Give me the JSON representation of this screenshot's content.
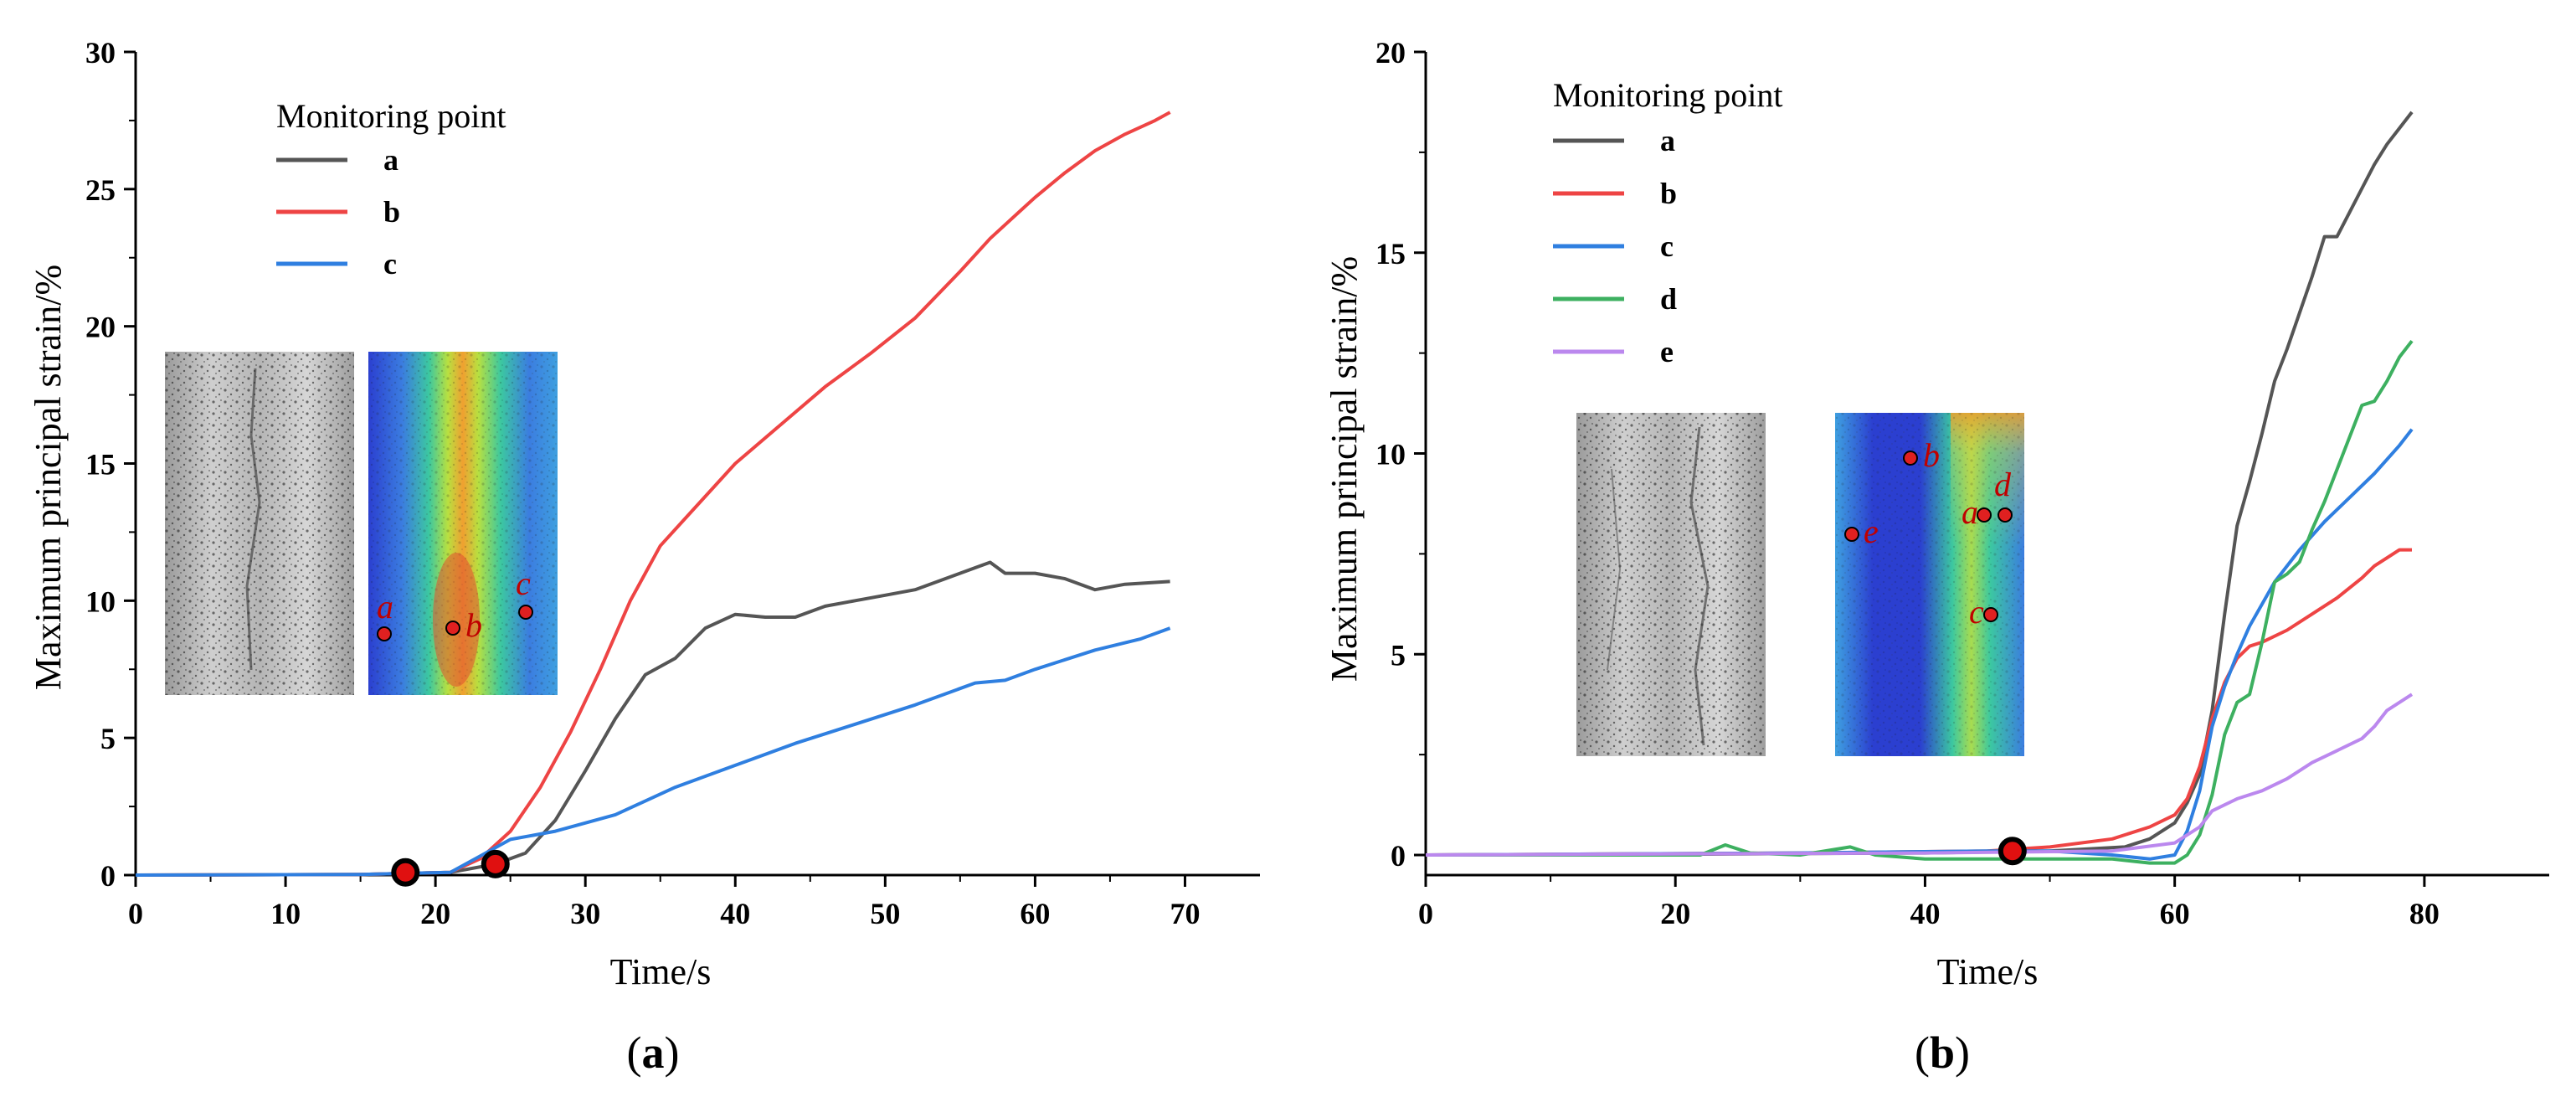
{
  "chart_data": [
    {
      "type": "line",
      "panel": "a",
      "caption_open": "(",
      "caption_letter": "a",
      "caption_close": ")",
      "xlabel": "Time/s",
      "ylabel": "Maximum principal strain/%",
      "xlim": [
        0,
        75
      ],
      "ylim": [
        0,
        30
      ],
      "xticks": [
        0,
        10,
        20,
        30,
        40,
        50,
        60,
        70
      ],
      "yticks": [
        0,
        5,
        10,
        15,
        20,
        25,
        30
      ],
      "legend_title": "Monitoring point",
      "legend_position": "top-left",
      "series": [
        {
          "name": "a",
          "color": "#555555",
          "points": [
            [
              0,
              0
            ],
            [
              15,
              0.02
            ],
            [
              21,
              0.1
            ],
            [
              24,
              0.4
            ],
            [
              26,
              0.8
            ],
            [
              28,
              2.0
            ],
            [
              30,
              3.8
            ],
            [
              32,
              5.7
            ],
            [
              34,
              7.3
            ],
            [
              36,
              7.9
            ],
            [
              38,
              9.0
            ],
            [
              40,
              9.5
            ],
            [
              42,
              9.4
            ],
            [
              44,
              9.4
            ],
            [
              46,
              9.8
            ],
            [
              48,
              10.0
            ],
            [
              50,
              10.2
            ],
            [
              52,
              10.4
            ],
            [
              54,
              10.8
            ],
            [
              56,
              11.2
            ],
            [
              57,
              11.4
            ],
            [
              58,
              11.0
            ],
            [
              60,
              11.0
            ],
            [
              62,
              10.8
            ],
            [
              64,
              10.4
            ],
            [
              66,
              10.6
            ],
            [
              69,
              10.7
            ]
          ]
        },
        {
          "name": "b",
          "color": "#ee4444",
          "points": [
            [
              0,
              0
            ],
            [
              15,
              0.02
            ],
            [
              21,
              0.1
            ],
            [
              23,
              0.6
            ],
            [
              25,
              1.6
            ],
            [
              27,
              3.2
            ],
            [
              29,
              5.2
            ],
            [
              31,
              7.5
            ],
            [
              33,
              10.0
            ],
            [
              35,
              12.0
            ],
            [
              37,
              13.2
            ],
            [
              40,
              15.0
            ],
            [
              43,
              16.4
            ],
            [
              46,
              17.8
            ],
            [
              49,
              19.0
            ],
            [
              52,
              20.3
            ],
            [
              55,
              22.0
            ],
            [
              57,
              23.2
            ],
            [
              59,
              24.2
            ],
            [
              60,
              24.7
            ],
            [
              62,
              25.6
            ],
            [
              64,
              26.4
            ],
            [
              66,
              27.0
            ],
            [
              68,
              27.5
            ],
            [
              69,
              27.8
            ]
          ]
        },
        {
          "name": "c",
          "color": "#2f7fe0",
          "points": [
            [
              0,
              0
            ],
            [
              15,
              0.02
            ],
            [
              21,
              0.1
            ],
            [
              23,
              0.7
            ],
            [
              25,
              1.3
            ],
            [
              28,
              1.6
            ],
            [
              32,
              2.2
            ],
            [
              36,
              3.2
            ],
            [
              40,
              4.0
            ],
            [
              44,
              4.8
            ],
            [
              48,
              5.5
            ],
            [
              52,
              6.2
            ],
            [
              56,
              7.0
            ],
            [
              58,
              7.1
            ],
            [
              60,
              7.5
            ],
            [
              64,
              8.2
            ],
            [
              67,
              8.6
            ],
            [
              69,
              9.0
            ]
          ]
        }
      ],
      "markers": [
        [
          18,
          0.1
        ],
        [
          24,
          0.4
        ]
      ],
      "inset_point_labels": [
        "a",
        "b",
        "c"
      ]
    },
    {
      "type": "line",
      "panel": "b",
      "caption_open": "(",
      "caption_letter": "b",
      "caption_close": ")",
      "xlabel": "Time/s",
      "ylabel": "Maximum principal strain/%",
      "xlim": [
        0,
        90
      ],
      "ylim": [
        -0.5,
        20
      ],
      "xticks": [
        0,
        20,
        40,
        60,
        80
      ],
      "yticks": [
        0,
        5,
        10,
        15,
        20
      ],
      "legend_title": "Monitoring point",
      "legend_position": "top-left",
      "series": [
        {
          "name": "a",
          "color": "#555555",
          "points": [
            [
              0,
              0
            ],
            [
              20,
              0.02
            ],
            [
              40,
              0.05
            ],
            [
              50,
              0.1
            ],
            [
              56,
              0.2
            ],
            [
              58,
              0.4
            ],
            [
              60,
              0.8
            ],
            [
              61,
              1.3
            ],
            [
              62,
              2.0
            ],
            [
              63,
              3.6
            ],
            [
              64,
              6.0
            ],
            [
              65,
              8.2
            ],
            [
              66,
              9.3
            ],
            [
              67,
              10.5
            ],
            [
              68,
              11.8
            ],
            [
              69,
              12.6
            ],
            [
              70,
              13.5
            ],
            [
              71,
              14.4
            ],
            [
              72,
              15.4
            ],
            [
              73,
              15.4
            ],
            [
              74,
              16.0
            ],
            [
              75,
              16.6
            ],
            [
              76,
              17.2
            ],
            [
              77,
              17.7
            ],
            [
              78,
              18.1
            ],
            [
              79,
              18.5
            ]
          ]
        },
        {
          "name": "b",
          "color": "#ee4444",
          "points": [
            [
              0,
              0
            ],
            [
              30,
              0.05
            ],
            [
              45,
              0.1
            ],
            [
              50,
              0.2
            ],
            [
              55,
              0.4
            ],
            [
              58,
              0.7
            ],
            [
              60,
              1.0
            ],
            [
              61,
              1.4
            ],
            [
              62,
              2.2
            ],
            [
              63,
              3.4
            ],
            [
              64,
              4.3
            ],
            [
              65,
              4.9
            ],
            [
              66,
              5.2
            ],
            [
              67,
              5.3
            ],
            [
              69,
              5.6
            ],
            [
              71,
              6.0
            ],
            [
              73,
              6.4
            ],
            [
              75,
              6.9
            ],
            [
              76,
              7.2
            ],
            [
              77,
              7.4
            ],
            [
              78,
              7.6
            ],
            [
              79,
              7.6
            ]
          ]
        },
        {
          "name": "c",
          "color": "#2f7fe0",
          "points": [
            [
              0,
              0
            ],
            [
              30,
              0.05
            ],
            [
              45,
              0.1
            ],
            [
              50,
              0.1
            ],
            [
              55,
              0.0
            ],
            [
              58,
              -0.1
            ],
            [
              60,
              0.0
            ],
            [
              61,
              0.6
            ],
            [
              62,
              1.6
            ],
            [
              63,
              3.2
            ],
            [
              64,
              4.2
            ],
            [
              65,
              5.0
            ],
            [
              66,
              5.7
            ],
            [
              68,
              6.8
            ],
            [
              70,
              7.6
            ],
            [
              72,
              8.3
            ],
            [
              74,
              8.9
            ],
            [
              76,
              9.5
            ],
            [
              78,
              10.2
            ],
            [
              79,
              10.6
            ]
          ]
        },
        {
          "name": "d",
          "color": "#3db060",
          "points": [
            [
              0,
              0
            ],
            [
              22,
              0.0
            ],
            [
              24,
              0.25
            ],
            [
              26,
              0.05
            ],
            [
              30,
              0.0
            ],
            [
              34,
              0.2
            ],
            [
              36,
              0.0
            ],
            [
              40,
              -0.1
            ],
            [
              45,
              -0.1
            ],
            [
              50,
              -0.1
            ],
            [
              55,
              -0.1
            ],
            [
              58,
              -0.2
            ],
            [
              60,
              -0.2
            ],
            [
              61,
              0.0
            ],
            [
              62,
              0.5
            ],
            [
              63,
              1.5
            ],
            [
              64,
              3.0
            ],
            [
              65,
              3.8
            ],
            [
              66,
              4.0
            ],
            [
              67,
              5.3
            ],
            [
              68,
              6.8
            ],
            [
              69,
              7.0
            ],
            [
              70,
              7.3
            ],
            [
              71,
              8.1
            ],
            [
              72,
              8.8
            ],
            [
              73,
              9.6
            ],
            [
              74,
              10.4
            ],
            [
              75,
              11.2
            ],
            [
              76,
              11.3
            ],
            [
              77,
              11.8
            ],
            [
              78,
              12.4
            ],
            [
              79,
              12.8
            ]
          ]
        },
        {
          "name": "e",
          "color": "#bb88ee",
          "points": [
            [
              0,
              0
            ],
            [
              40,
              0.05
            ],
            [
              55,
              0.1
            ],
            [
              60,
              0.3
            ],
            [
              62,
              0.7
            ],
            [
              63,
              1.1
            ],
            [
              65,
              1.4
            ],
            [
              67,
              1.6
            ],
            [
              69,
              1.9
            ],
            [
              71,
              2.3
            ],
            [
              73,
              2.6
            ],
            [
              75,
              2.9
            ],
            [
              76,
              3.2
            ],
            [
              77,
              3.6
            ],
            [
              78,
              3.8
            ],
            [
              79,
              4.0
            ]
          ]
        }
      ],
      "markers": [
        [
          47,
          0.1
        ]
      ],
      "inset_point_labels": [
        "a",
        "b",
        "c",
        "d",
        "e"
      ]
    }
  ]
}
